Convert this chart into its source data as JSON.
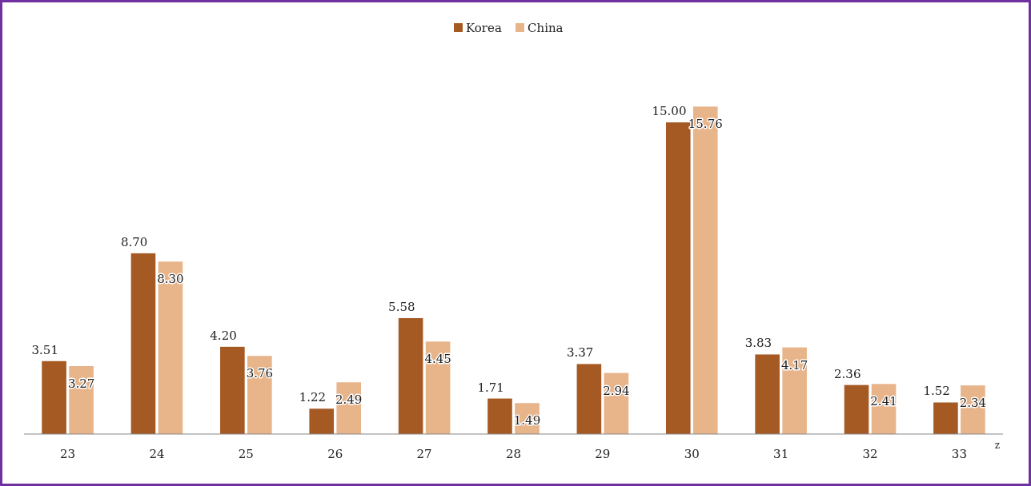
{
  "chart_data": {
    "type": "bar",
    "categories": [
      "23",
      "24",
      "25",
      "26",
      "27",
      "28",
      "29",
      "30",
      "31",
      "32",
      "33"
    ],
    "series": [
      {
        "name": "Korea",
        "color": "#a65a23",
        "values": [
          3.51,
          8.7,
          4.2,
          1.22,
          5.58,
          1.71,
          3.37,
          15.0,
          3.83,
          2.36,
          1.52
        ],
        "value_labels": [
          "3.51",
          "8.70",
          "4.20",
          "1.22",
          "5.58",
          "1.71",
          "3.37",
          "15.00",
          "3.83",
          "2.36",
          "1.52"
        ]
      },
      {
        "name": "China",
        "color": "#e8b48a",
        "values": [
          3.27,
          8.3,
          3.76,
          2.49,
          4.45,
          1.49,
          2.94,
          15.76,
          4.17,
          2.41,
          2.34
        ],
        "value_labels": [
          "3.27",
          "8.30",
          "3.76",
          "2.49",
          "4.45",
          "1.49",
          "2.94",
          "15.76",
          "4.17",
          "2.41",
          "2.34"
        ]
      }
    ],
    "legend": "top",
    "grid": false,
    "annotations": [
      "z"
    ]
  }
}
